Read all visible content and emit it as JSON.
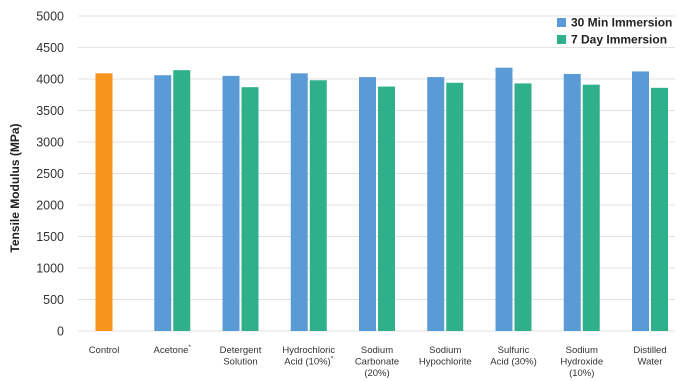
{
  "chart_data": {
    "type": "bar",
    "title": "",
    "xlabel": "",
    "ylabel": "Tensile Modulus (MPa)",
    "ylim": [
      0,
      5000
    ],
    "yticks": [
      0,
      500,
      1000,
      1500,
      2000,
      2500,
      3000,
      3500,
      4000,
      4500,
      5000
    ],
    "grid": true,
    "legend_position": "top-right",
    "categories": [
      [
        "Control"
      ],
      [
        "Acetone*"
      ],
      [
        "Detergent",
        "Solution"
      ],
      [
        "Hydrochloric",
        "Acid (10%)*"
      ],
      [
        "Sodium",
        "Carbonate",
        "(20%)"
      ],
      [
        "Sodium",
        "Hypochlorite"
      ],
      [
        "Sulfuric",
        "Acid (30%)"
      ],
      [
        "Sodium",
        "Hydroxide",
        "(10%)"
      ],
      [
        "Distilled",
        "Water"
      ]
    ],
    "control": {
      "name": "Control",
      "value": 4090,
      "color": "#f7941d"
    },
    "series": [
      {
        "name": "30 Min Immersion",
        "color": "#5b9bd5",
        "values": [
          null,
          4060,
          4050,
          4090,
          4030,
          4030,
          4180,
          4080,
          4120
        ]
      },
      {
        "name": "7 Day Immersion",
        "color": "#2fb08a",
        "values": [
          null,
          4140,
          3870,
          3980,
          3880,
          3940,
          3930,
          3910,
          3860
        ]
      }
    ]
  }
}
